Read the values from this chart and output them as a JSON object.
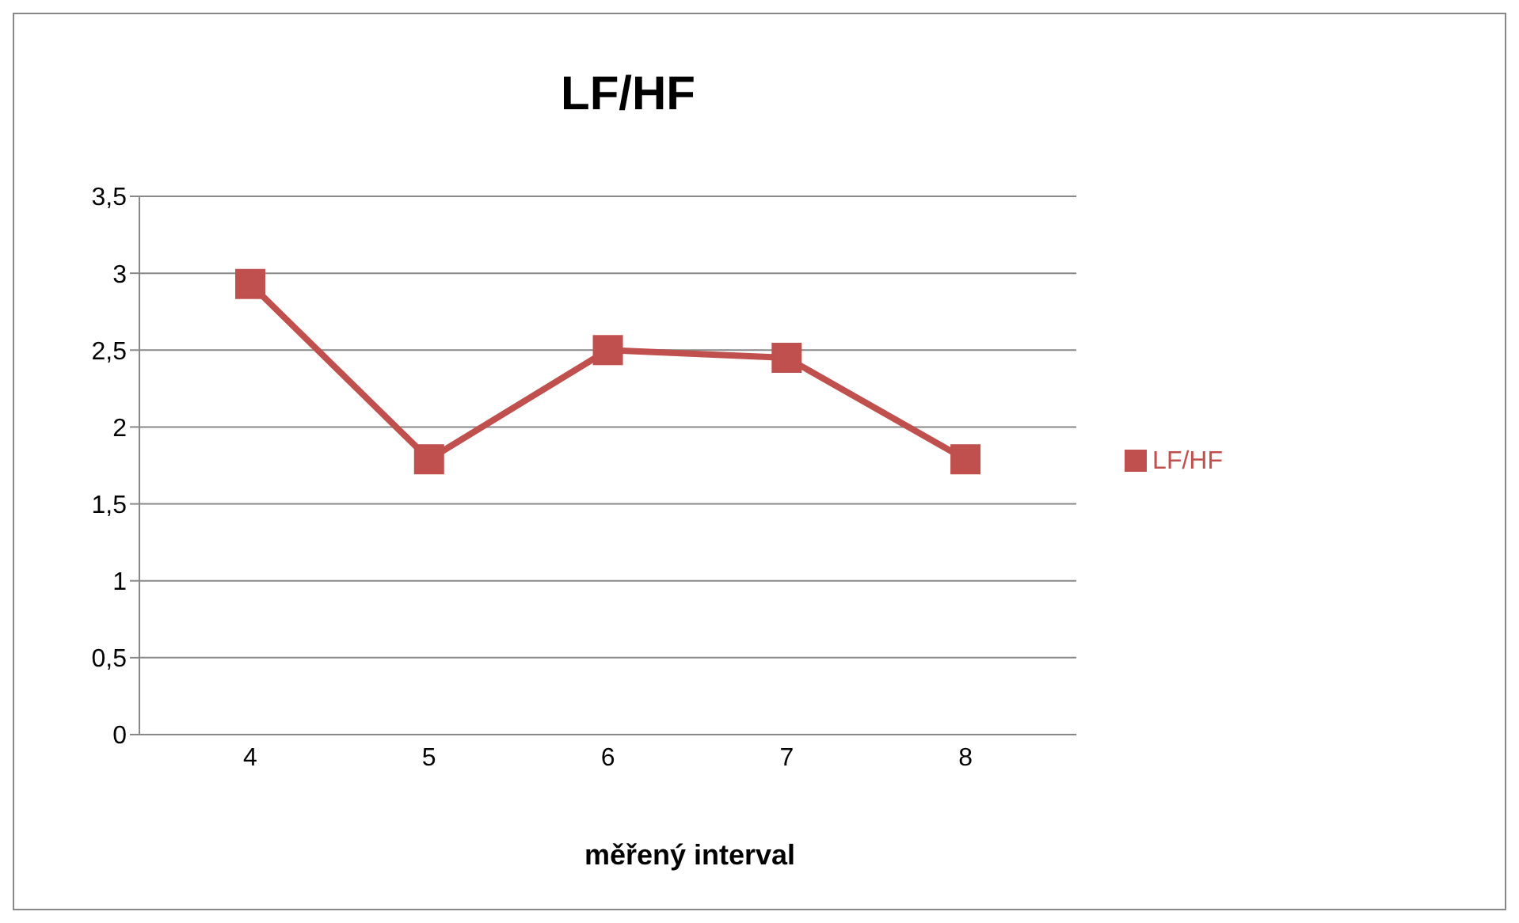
{
  "chart_data": {
    "type": "line",
    "title": "LF/HF",
    "xlabel": "měřený interval",
    "categories": [
      "4",
      "5",
      "6",
      "7",
      "8"
    ],
    "series": [
      {
        "name": "LF/HF",
        "color": "#c0504d",
        "values": [
          2.93,
          1.79,
          2.5,
          2.45,
          1.79
        ]
      }
    ],
    "ylim": [
      0,
      3.5
    ],
    "yticks": [
      0,
      {
        "value": 0.5,
        "label": "0,5"
      },
      1,
      {
        "value": 1.5,
        "label": "1,5"
      },
      2,
      {
        "value": 2.5,
        "label": "2,5"
      },
      3,
      {
        "value": 3.5,
        "label": "3,5"
      }
    ],
    "grid": "y",
    "legend": "right",
    "marker": "square",
    "line_style": "solid"
  }
}
